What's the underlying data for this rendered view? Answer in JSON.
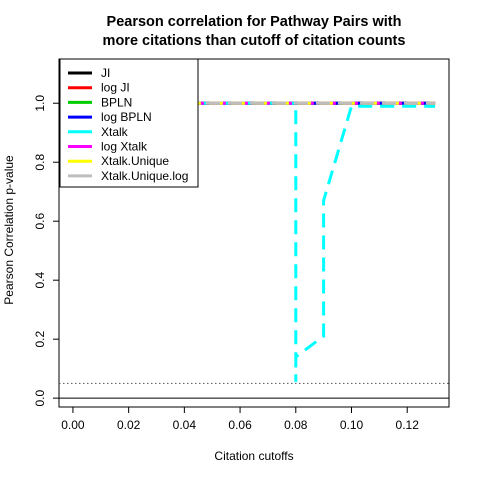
{
  "chart_data": {
    "type": "line",
    "title_lines": [
      "Pearson correlation for Pathway Pairs with",
      "more citations than cutoff of citation counts"
    ],
    "xlabel": "Citation cutoffs",
    "ylabel": "Pearson Correlation p-value",
    "xlim": [
      -0.005,
      0.135
    ],
    "ylim": [
      -0.03,
      1.15
    ],
    "xticks": [
      "0.00",
      "0.02",
      "0.04",
      "0.06",
      "0.08",
      "0.10",
      "0.12"
    ],
    "yticks": [
      "0.0",
      "0.2",
      "0.4",
      "0.6",
      "0.8",
      "1.0"
    ],
    "x": [
      0.0,
      0.01,
      0.02,
      0.03,
      0.04,
      0.05,
      0.06,
      0.07,
      0.08,
      0.09,
      0.1,
      0.11,
      0.12,
      0.13
    ],
    "reference_lines": [
      {
        "y": 0.05,
        "style": "dotted",
        "color": "#555555"
      },
      {
        "y": 0.0,
        "style": "solid",
        "color": "#000000"
      }
    ],
    "legend_position": "top-left",
    "series": [
      {
        "name": "JI",
        "color": "#000000",
        "values": [
          1,
          1,
          1,
          1,
          1,
          1,
          1,
          1,
          1,
          1,
          1,
          1,
          1,
          1
        ]
      },
      {
        "name": "log JI",
        "color": "#ff0000",
        "values": [
          1,
          1,
          1,
          1,
          1,
          1,
          1,
          1,
          1,
          1,
          1,
          1,
          1,
          1
        ]
      },
      {
        "name": "BPLN",
        "color": "#00cd00",
        "values": [
          1,
          1,
          1,
          1,
          1,
          1,
          1,
          1,
          1,
          1,
          1,
          1,
          1,
          1
        ]
      },
      {
        "name": "log BPLN",
        "color": "#0000ff",
        "values": [
          1,
          1,
          1,
          1,
          1,
          1,
          1,
          1,
          1,
          1,
          1,
          1,
          1,
          1
        ]
      },
      {
        "name": "Xtalk",
        "color": "#00ffff",
        "points": [
          [
            0.0,
            1.0
          ],
          [
            0.08,
            1.0
          ],
          [
            0.08,
            0.055
          ],
          [
            0.08,
            0.14
          ],
          [
            0.09,
            0.21
          ],
          [
            0.09,
            0.67
          ],
          [
            0.1,
            0.99
          ],
          [
            0.13,
            0.99
          ]
        ]
      },
      {
        "name": "log Xtalk",
        "color": "#ff00ff",
        "values": [
          1,
          1,
          1,
          1,
          1,
          1,
          1,
          1,
          1,
          1,
          1,
          1,
          1,
          1
        ]
      },
      {
        "name": "Xtalk.Unique",
        "color": "#ffff00",
        "values": [
          1,
          1,
          1,
          1,
          1,
          1,
          1,
          1,
          1,
          1,
          1,
          1,
          1,
          1
        ]
      },
      {
        "name": "Xtalk.Unique.log",
        "color": "#bebebe",
        "values": [
          1,
          1,
          1,
          1,
          1,
          1,
          1,
          1,
          1,
          1,
          1,
          1,
          1,
          1
        ]
      }
    ]
  }
}
